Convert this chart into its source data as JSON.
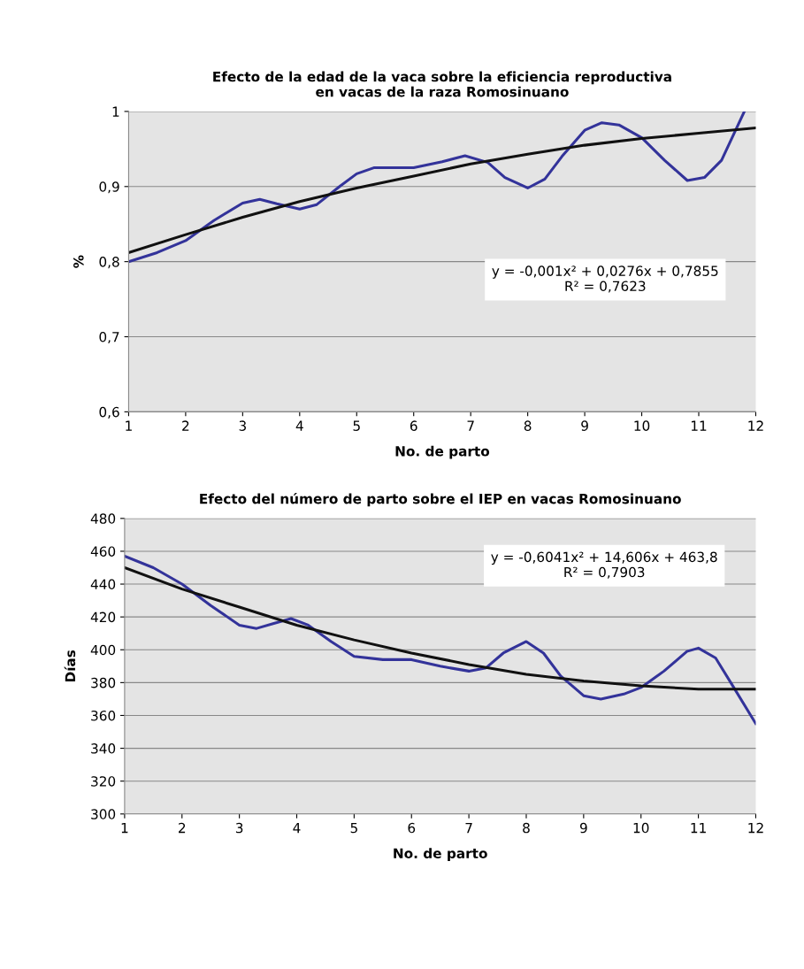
{
  "chart_data": [
    {
      "type": "line",
      "title": "Efecto de la edad de la vaca sobre la eficiencia reproductiva\nen vacas de la raza Romosinuano",
      "xlabel": "No. de parto",
      "ylabel": "%",
      "xlim": [
        1,
        12
      ],
      "xticks": [
        1,
        2,
        3,
        4,
        5,
        6,
        7,
        8,
        9,
        10,
        11,
        12
      ],
      "ylim": [
        0.6,
        1
      ],
      "yticks": [
        {
          "value": 0.6,
          "label": "0,6"
        },
        {
          "value": 0.7,
          "label": "0,7"
        },
        {
          "value": 0.8,
          "label": "0,8"
        },
        {
          "value": 0.9,
          "label": "0,9"
        },
        1
      ],
      "grid": "y",
      "legend": false,
      "marker": "none",
      "line_style": "solid",
      "series": [
        {
          "color": "#33339a",
          "x": [
            1,
            1.5,
            2,
            2.5,
            3,
            3.3,
            3.6,
            4,
            4.3,
            4.7,
            5,
            5.3,
            6,
            6.5,
            6.9,
            7.3,
            7.6,
            8,
            8.3,
            8.6,
            9,
            9.3,
            9.6,
            10,
            10.4,
            10.8,
            11.1,
            11.4,
            11.8
          ],
          "values": [
            0.8,
            0.812,
            0.828,
            0.855,
            0.878,
            0.883,
            0.877,
            0.87,
            0.876,
            0.9,
            0.917,
            0.925,
            0.925,
            0.933,
            0.941,
            0.932,
            0.912,
            0.898,
            0.91,
            0.94,
            0.975,
            0.985,
            0.982,
            0.965,
            0.935,
            0.908,
            0.912,
            0.935,
            1.0
          ]
        },
        {
          "color": "#111111",
          "x": [
            1,
            2,
            3,
            4,
            5,
            6,
            7,
            8,
            9,
            10,
            11,
            12
          ],
          "values": [
            0.812,
            0.836,
            0.859,
            0.88,
            0.898,
            0.914,
            0.93,
            0.943,
            0.955,
            0.964,
            0.971,
            0.978
          ]
        }
      ],
      "annotations": [
        "y = -0,001x² + 0,0276x + 0,7855\nR² = 0,7623"
      ]
    },
    {
      "type": "line",
      "title": "Efecto del número de parto sobre el IEP en vacas Romosinuano",
      "xlabel": "No. de parto",
      "ylabel": "Días",
      "xlim": [
        1,
        12
      ],
      "xticks": [
        1,
        2,
        3,
        4,
        5,
        6,
        7,
        8,
        9,
        10,
        11,
        12
      ],
      "ylim": [
        300,
        480
      ],
      "yticks": [
        300,
        320,
        340,
        360,
        380,
        400,
        420,
        440,
        460,
        480
      ],
      "grid": "y",
      "legend": false,
      "marker": "none",
      "line_style": "solid",
      "series": [
        {
          "color": "#33339a",
          "x": [
            1,
            1.5,
            2,
            2.5,
            3,
            3.3,
            3.6,
            3.9,
            4.2,
            4.6,
            5,
            5.5,
            6,
            6.5,
            7,
            7.3,
            7.6,
            8,
            8.3,
            8.6,
            9,
            9.3,
            9.7,
            10,
            10.4,
            10.8,
            11,
            11.3,
            11.6,
            12
          ],
          "values": [
            457,
            450,
            440,
            427,
            415,
            413,
            416,
            419,
            415,
            405,
            396,
            394,
            394,
            390,
            387,
            389,
            398,
            405,
            398,
            384,
            372,
            370,
            373,
            377,
            387,
            399,
            401,
            395,
            378,
            355
          ]
        },
        {
          "color": "#111111",
          "x": [
            1,
            2,
            3,
            4,
            5,
            6,
            7,
            8,
            9,
            10,
            11,
            12
          ],
          "values": [
            450,
            437,
            426,
            415,
            406,
            398,
            391,
            385,
            381,
            378,
            376,
            376
          ]
        }
      ],
      "annotations": [
        "y = -0,6041x² + 14,606x + 463,8\nR² = 0,7903"
      ]
    }
  ]
}
